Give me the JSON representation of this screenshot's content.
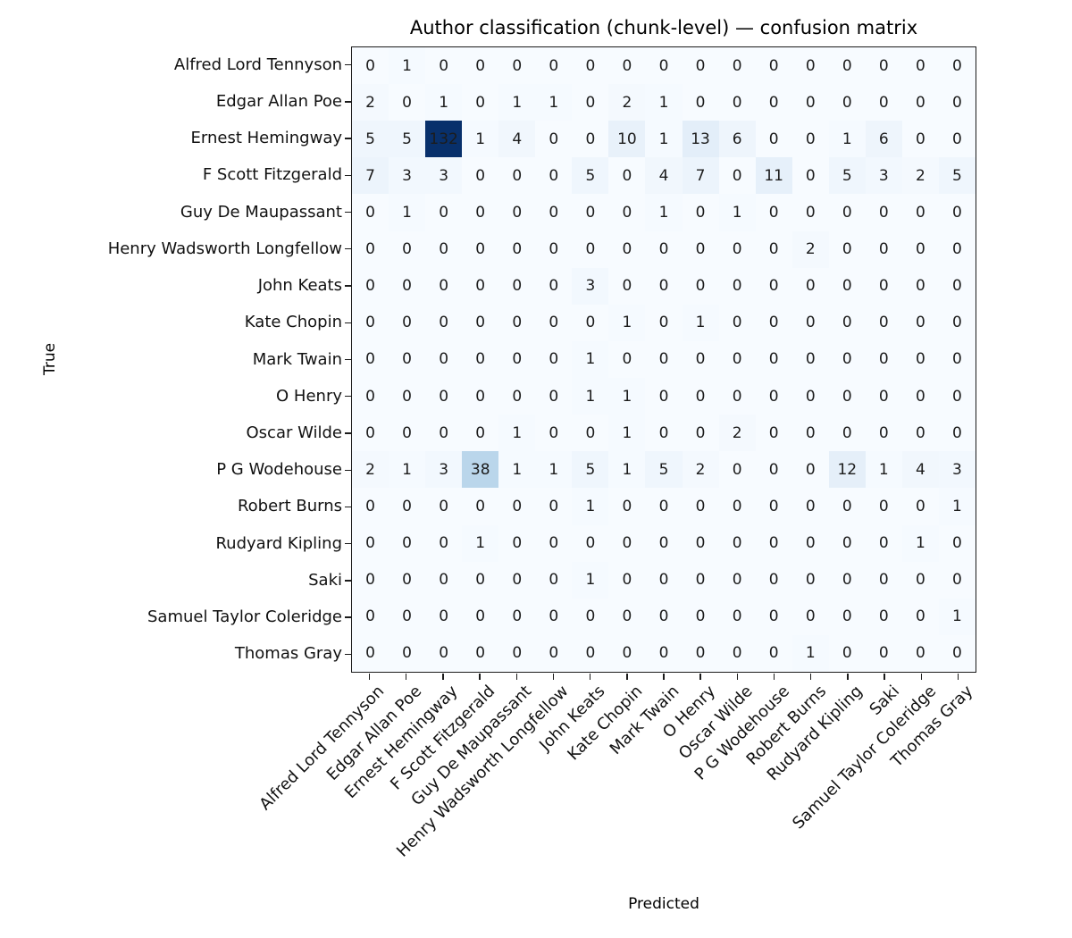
{
  "chart_data": {
    "type": "heatmap",
    "title": "Author classification (chunk-level) — confusion matrix",
    "xlabel": "Predicted",
    "ylabel": "True",
    "legend": "none",
    "grid": "off",
    "vmin": 0,
    "vmax": 132,
    "colormap": {
      "name": "Blues",
      "anchors": [
        "#f7fbff",
        "#deebf7",
        "#c6dbef",
        "#9ecae1",
        "#6baed6",
        "#4292c6",
        "#2171b5",
        "#08519c",
        "#08306b"
      ]
    },
    "cell_text_color": "#1c1c1c",
    "axis_edge_color": "#1b1b1b",
    "categories": [
      "Alfred Lord Tennyson",
      "Edgar Allan Poe",
      "Ernest Hemingway",
      "F Scott Fitzgerald",
      "Guy De Maupassant",
      "Henry Wadsworth Longfellow",
      "John Keats",
      "Kate Chopin",
      "Mark Twain",
      "O Henry",
      "Oscar Wilde",
      "P G Wodehouse",
      "Robert Burns",
      "Rudyard Kipling",
      "Saki",
      "Samuel Taylor Coleridge",
      "Thomas Gray"
    ],
    "matrix": [
      [
        0,
        1,
        0,
        0,
        0,
        0,
        0,
        0,
        0,
        0,
        0,
        0,
        0,
        0,
        0,
        0,
        0
      ],
      [
        2,
        0,
        1,
        0,
        1,
        1,
        0,
        2,
        1,
        0,
        0,
        0,
        0,
        0,
        0,
        0,
        0
      ],
      [
        5,
        5,
        132,
        1,
        4,
        0,
        0,
        10,
        1,
        13,
        6,
        0,
        0,
        1,
        6,
        0,
        0
      ],
      [
        7,
        3,
        3,
        0,
        0,
        0,
        5,
        0,
        4,
        7,
        0,
        11,
        0,
        5,
        3,
        2,
        5
      ],
      [
        0,
        1,
        0,
        0,
        0,
        0,
        0,
        0,
        1,
        0,
        1,
        0,
        0,
        0,
        0,
        0,
        0
      ],
      [
        0,
        0,
        0,
        0,
        0,
        0,
        0,
        0,
        0,
        0,
        0,
        0,
        2,
        0,
        0,
        0,
        0
      ],
      [
        0,
        0,
        0,
        0,
        0,
        0,
        3,
        0,
        0,
        0,
        0,
        0,
        0,
        0,
        0,
        0,
        0
      ],
      [
        0,
        0,
        0,
        0,
        0,
        0,
        0,
        1,
        0,
        1,
        0,
        0,
        0,
        0,
        0,
        0,
        0
      ],
      [
        0,
        0,
        0,
        0,
        0,
        0,
        1,
        0,
        0,
        0,
        0,
        0,
        0,
        0,
        0,
        0,
        0
      ],
      [
        0,
        0,
        0,
        0,
        0,
        0,
        1,
        1,
        0,
        0,
        0,
        0,
        0,
        0,
        0,
        0,
        0
      ],
      [
        0,
        0,
        0,
        0,
        1,
        0,
        0,
        1,
        0,
        0,
        2,
        0,
        0,
        0,
        0,
        0,
        0
      ],
      [
        2,
        1,
        3,
        38,
        1,
        1,
        5,
        1,
        5,
        2,
        0,
        0,
        0,
        12,
        1,
        4,
        3
      ],
      [
        0,
        0,
        0,
        0,
        0,
        0,
        1,
        0,
        0,
        0,
        0,
        0,
        0,
        0,
        0,
        0,
        1
      ],
      [
        0,
        0,
        0,
        1,
        0,
        0,
        0,
        0,
        0,
        0,
        0,
        0,
        0,
        0,
        0,
        1,
        0
      ],
      [
        0,
        0,
        0,
        0,
        0,
        0,
        1,
        0,
        0,
        0,
        0,
        0,
        0,
        0,
        0,
        0,
        0
      ],
      [
        0,
        0,
        0,
        0,
        0,
        0,
        0,
        0,
        0,
        0,
        0,
        0,
        0,
        0,
        0,
        0,
        1
      ],
      [
        0,
        0,
        0,
        0,
        0,
        0,
        0,
        0,
        0,
        0,
        0,
        0,
        1,
        0,
        0,
        0,
        0
      ]
    ]
  }
}
